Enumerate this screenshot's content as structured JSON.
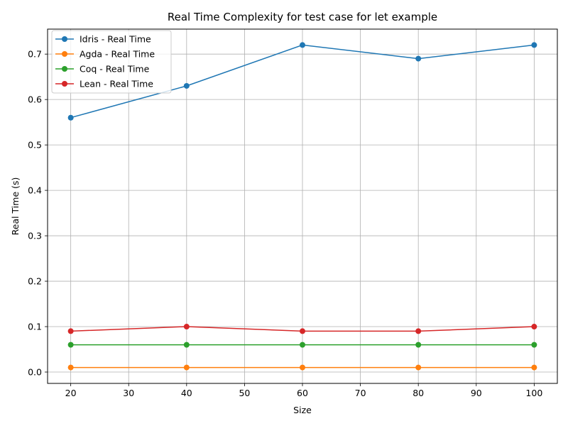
{
  "chart_data": {
    "type": "line",
    "title": "Real Time Complexity for test case for let example",
    "xlabel": "Size",
    "ylabel": "Real Time (s)",
    "xlim": [
      16,
      104
    ],
    "ylim": [
      -0.025,
      0.755
    ],
    "xticks": [
      20,
      30,
      40,
      50,
      60,
      70,
      80,
      90,
      100
    ],
    "yticks": [
      0.0,
      0.1,
      0.2,
      0.3,
      0.4,
      0.5,
      0.6,
      0.7
    ],
    "x": [
      20,
      40,
      60,
      80,
      100
    ],
    "grid": true,
    "legend_position": "top-left",
    "series": [
      {
        "name": "Idris - Real Time",
        "color": "#1f77b4",
        "values": [
          0.56,
          0.63,
          0.72,
          0.69,
          0.72
        ]
      },
      {
        "name": "Agda - Real Time",
        "color": "#ff7f0e",
        "values": [
          0.01,
          0.01,
          0.01,
          0.01,
          0.01
        ]
      },
      {
        "name": "Coq - Real Time",
        "color": "#2ca02c",
        "values": [
          0.06,
          0.06,
          0.06,
          0.06,
          0.06
        ]
      },
      {
        "name": "Lean - Real Time",
        "color": "#d62728",
        "values": [
          0.09,
          0.1,
          0.09,
          0.09,
          0.1
        ]
      }
    ]
  }
}
